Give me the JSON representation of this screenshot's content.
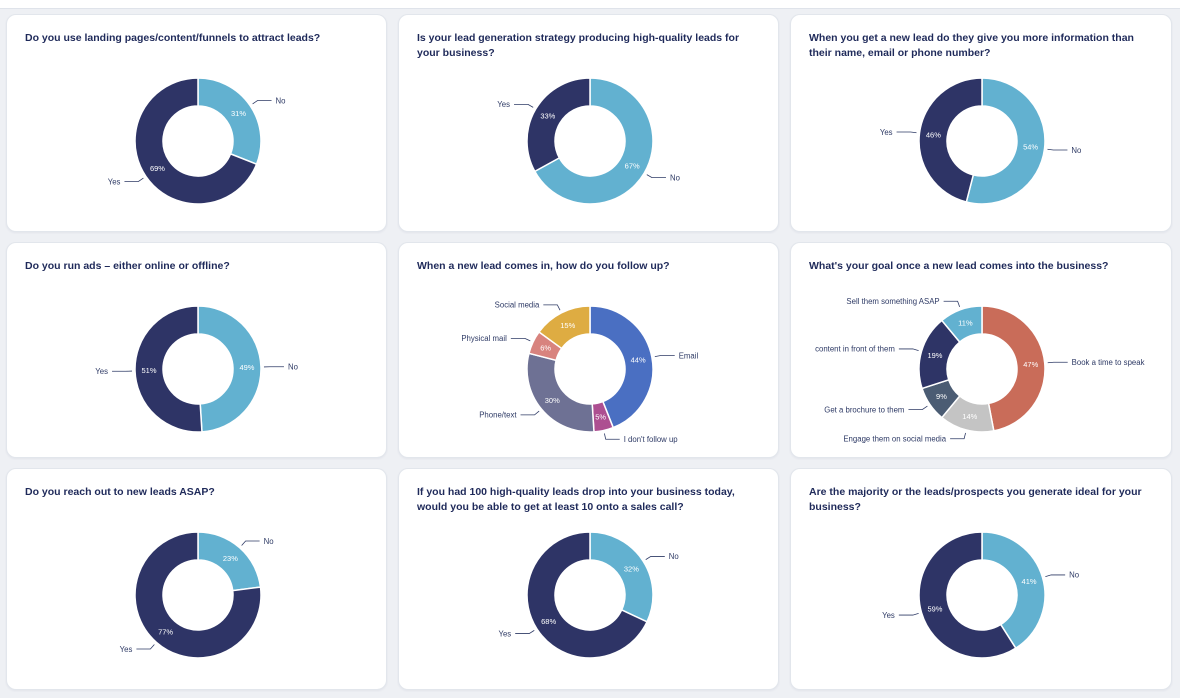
{
  "colors": {
    "navy": "#2e3466",
    "sky": "#62b1d0",
    "blue": "#4a6fc2",
    "slate": "#6e7194",
    "pink": "#ad4f91",
    "salmon": "#d8837e",
    "gold": "#deac42",
    "rust": "#c96c59",
    "grey": "#c4c4c4",
    "darkslate": "#4b5c73"
  },
  "chart_data": [
    {
      "type": "pie",
      "title": "Do you use landing pages/content/funnels to attract leads?",
      "slices": [
        {
          "name": "No",
          "value": 31,
          "label": "31%",
          "color": "#62b1d0"
        },
        {
          "name": "Yes",
          "value": 69,
          "label": "69%",
          "color": "#2e3466"
        }
      ]
    },
    {
      "type": "pie",
      "title": "Is your lead generation strategy producing high-quality leads for your business?",
      "slices": [
        {
          "name": "No",
          "value": 67,
          "label": "67%",
          "color": "#62b1d0"
        },
        {
          "name": "Yes",
          "value": 33,
          "label": "33%",
          "color": "#2e3466"
        }
      ]
    },
    {
      "type": "pie",
      "title": "When you get a new lead do they give you more information than their name, email or phone number?",
      "slices": [
        {
          "name": "No",
          "value": 54,
          "label": "54%",
          "color": "#62b1d0"
        },
        {
          "name": "Yes",
          "value": 46,
          "label": "46%",
          "color": "#2e3466"
        }
      ]
    },
    {
      "type": "pie",
      "title": "Do you run ads – either online or offline?",
      "slices": [
        {
          "name": "No",
          "value": 49,
          "label": "49%",
          "color": "#62b1d0"
        },
        {
          "name": "Yes",
          "value": 51,
          "label": "51%",
          "color": "#2e3466"
        }
      ]
    },
    {
      "type": "pie",
      "title": "When a new lead comes in, how do you follow up?",
      "slices": [
        {
          "name": "Email",
          "value": 44,
          "label": "44%",
          "color": "#4a6fc2"
        },
        {
          "name": "I don't follow up",
          "value": 5,
          "label": "5%",
          "color": "#ad4f91"
        },
        {
          "name": "Phone/text",
          "value": 30,
          "label": "30%",
          "color": "#6e7194"
        },
        {
          "name": "Physical mail",
          "value": 6,
          "label": "6%",
          "color": "#d8837e"
        },
        {
          "name": "Social media",
          "value": 15,
          "label": "15%",
          "color": "#deac42"
        }
      ]
    },
    {
      "type": "pie",
      "title": "What's your goal once a new lead comes into the business?",
      "slices": [
        {
          "name": "Book a time to speak",
          "value": 47,
          "label": "47%",
          "color": "#c96c59"
        },
        {
          "name": "Engage them on social media",
          "value": 14,
          "label": "14%",
          "color": "#c4c4c4"
        },
        {
          "name": "Get a brochure to them",
          "value": 9,
          "label": "9%",
          "color": "#4b5c73"
        },
        {
          "name": "content in front of them",
          "value": 19,
          "label": "19%",
          "color": "#2e3466"
        },
        {
          "name": "Sell them something ASAP",
          "value": 11,
          "label": "11%",
          "color": "#62b1d0"
        }
      ]
    },
    {
      "type": "pie",
      "title": "Do you reach out to new leads ASAP?",
      "slices": [
        {
          "name": "No",
          "value": 23,
          "label": "23%",
          "color": "#62b1d0"
        },
        {
          "name": "Yes",
          "value": 77,
          "label": "77%",
          "color": "#2e3466"
        }
      ]
    },
    {
      "type": "pie",
      "title": "If you had 100 high-quality leads drop into your business today, would you be able to get at least 10 onto a sales call?",
      "slices": [
        {
          "name": "No",
          "value": 32,
          "label": "32%",
          "color": "#62b1d0"
        },
        {
          "name": "Yes",
          "value": 68,
          "label": "68%",
          "color": "#2e3466"
        }
      ]
    },
    {
      "type": "pie",
      "title": "Are the majority or the leads/prospects you generate ideal for your business?",
      "slices": [
        {
          "name": "No",
          "value": 41,
          "label": "41%",
          "color": "#62b1d0"
        },
        {
          "name": "Yes",
          "value": 59,
          "label": "59%",
          "color": "#2e3466"
        }
      ]
    }
  ]
}
